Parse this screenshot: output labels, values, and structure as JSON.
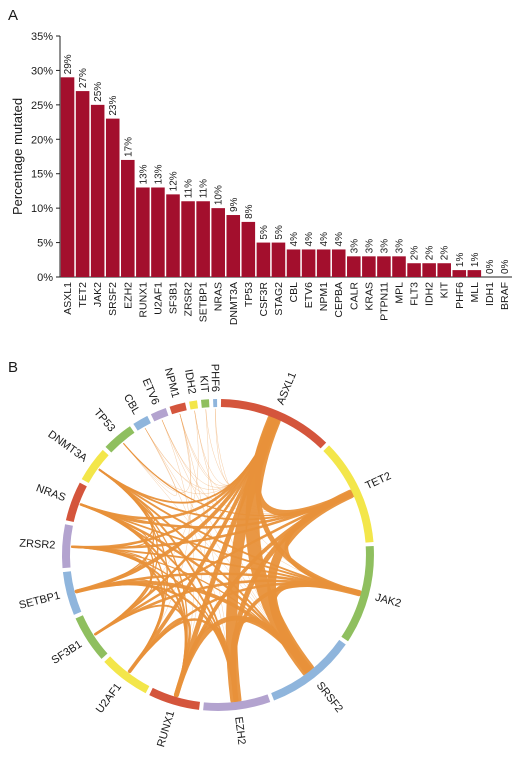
{
  "panels": {
    "a_label": "A",
    "b_label": "B"
  },
  "colors": {
    "bar": "#a30f2d",
    "chord": "#e8913a",
    "ring_palette": [
      "#d4553c",
      "#f3e64a",
      "#8fbf5f",
      "#8fb5dc",
      "#b3a3cf"
    ]
  },
  "chart_data": [
    {
      "type": "bar",
      "ylabel": "Percentage mutated",
      "ylim": [
        0,
        35
      ],
      "yticks": [
        "0%",
        "5%",
        "10%",
        "15%",
        "20%",
        "25%",
        "30%",
        "35%"
      ],
      "categories": [
        "ASXL1",
        "TET2",
        "JAK2",
        "SRSF2",
        "EZH2",
        "RUNX1",
        "U2AF1",
        "SF3B1",
        "ZRSR2",
        "SETBP1",
        "NRAS",
        "DNMT3A",
        "TP53",
        "CSF3R",
        "STAG2",
        "CBL",
        "ETV6",
        "NPM1",
        "CEPBA",
        "CALR",
        "KRAS",
        "PTPN11",
        "MPL",
        "FLT3",
        "IDH2",
        "KIT",
        "PHF6",
        "MLL",
        "IDH1",
        "BRAF"
      ],
      "values": [
        29,
        27,
        25,
        23,
        17,
        13,
        13,
        12,
        11,
        11,
        10,
        9,
        8,
        5,
        5,
        4,
        4,
        4,
        4,
        3,
        3,
        3,
        3,
        2,
        2,
        2,
        1,
        1,
        0,
        0
      ],
      "data_labels": [
        "29%",
        "27%",
        "25%",
        "23%",
        "17%",
        "13%",
        "13%",
        "12%",
        "11%",
        "11%",
        "10%",
        "9%",
        "8%",
        "5%",
        "5%",
        "4%",
        "4%",
        "4%",
        "4%",
        "3%",
        "3%",
        "3%",
        "3%",
        "2%",
        "2%",
        "2%",
        "1%",
        "1%",
        "0%",
        "0%"
      ]
    },
    {
      "type": "chord",
      "nodes": [
        "ASXL1",
        "TET2",
        "JAK2",
        "SRSF2",
        "EZH2",
        "RUNX1",
        "U2AF1",
        "SF3B1",
        "SETBP1",
        "ZRSR2",
        "NRAS",
        "DNMT3A",
        "TP53",
        "CBL",
        "ETV6",
        "NPM1",
        "IDH2",
        "KIT",
        "PHF6"
      ],
      "node_weights": [
        29,
        27,
        25,
        23,
        17,
        13,
        13,
        12,
        11,
        11,
        10,
        9,
        8,
        4,
        4,
        4,
        2,
        2,
        1
      ],
      "links": [
        {
          "source": "ASXL1",
          "target": "SRSF2",
          "value": 11
        },
        {
          "source": "ASXL1",
          "target": "EZH2",
          "value": 9
        },
        {
          "source": "ASXL1",
          "target": "TET2",
          "value": 5
        },
        {
          "source": "ASXL1",
          "target": "RUNX1",
          "value": 4
        },
        {
          "source": "ASXL1",
          "target": "JAK2",
          "value": 4
        },
        {
          "source": "ASXL1",
          "target": "U2AF1",
          "value": 3
        },
        {
          "source": "ASXL1",
          "target": "SETBP1",
          "value": 3
        },
        {
          "source": "ASXL1",
          "target": "SF3B1",
          "value": 2
        },
        {
          "source": "ASXL1",
          "target": "NRAS",
          "value": 2
        },
        {
          "source": "ASXL1",
          "target": "ZRSR2",
          "value": 2
        },
        {
          "source": "ASXL1",
          "target": "DNMT3A",
          "value": 1.5
        },
        {
          "source": "TET2",
          "target": "SRSF2",
          "value": 7
        },
        {
          "source": "TET2",
          "target": "EZH2",
          "value": 4
        },
        {
          "source": "TET2",
          "target": "JAK2",
          "value": 3
        },
        {
          "source": "TET2",
          "target": "RUNX1",
          "value": 3
        },
        {
          "source": "TET2",
          "target": "ZRSR2",
          "value": 2
        },
        {
          "source": "TET2",
          "target": "SF3B1",
          "value": 2
        },
        {
          "source": "TET2",
          "target": "NRAS",
          "value": 2
        },
        {
          "source": "TET2",
          "target": "DNMT3A",
          "value": 1.5
        },
        {
          "source": "TET2",
          "target": "TP53",
          "value": 1
        },
        {
          "source": "JAK2",
          "target": "SRSF2",
          "value": 5
        },
        {
          "source": "JAK2",
          "target": "EZH2",
          "value": 3
        },
        {
          "source": "JAK2",
          "target": "U2AF1",
          "value": 2
        },
        {
          "source": "JAK2",
          "target": "SF3B1",
          "value": 2
        },
        {
          "source": "JAK2",
          "target": "SETBP1",
          "value": 2
        },
        {
          "source": "JAK2",
          "target": "ZRSR2",
          "value": 1.5
        },
        {
          "source": "JAK2",
          "target": "NRAS",
          "value": 1.5
        },
        {
          "source": "JAK2",
          "target": "DNMT3A",
          "value": 1.5
        },
        {
          "source": "SRSF2",
          "target": "EZH2",
          "value": 4
        },
        {
          "source": "SRSF2",
          "target": "RUNX1",
          "value": 4
        },
        {
          "source": "SRSF2",
          "target": "SETBP1",
          "value": 3
        },
        {
          "source": "SRSF2",
          "target": "NRAS",
          "value": 2
        },
        {
          "source": "SRSF2",
          "target": "DNMT3A",
          "value": 1.5
        },
        {
          "source": "SRSF2",
          "target": "ZRSR2",
          "value": 1
        },
        {
          "source": "EZH2",
          "target": "RUNX1",
          "value": 3
        },
        {
          "source": "EZH2",
          "target": "U2AF1",
          "value": 2
        },
        {
          "source": "EZH2",
          "target": "SETBP1",
          "value": 2
        },
        {
          "source": "EZH2",
          "target": "NRAS",
          "value": 1.5
        },
        {
          "source": "EZH2",
          "target": "DNMT3A",
          "value": 1.5
        },
        {
          "source": "EZH2",
          "target": "ZRSR2",
          "value": 1
        },
        {
          "source": "RUNX1",
          "target": "U2AF1",
          "value": 2
        },
        {
          "source": "RUNX1",
          "target": "SF3B1",
          "value": 1.5
        },
        {
          "source": "RUNX1",
          "target": "SETBP1",
          "value": 1.5
        },
        {
          "source": "RUNX1",
          "target": "NRAS",
          "value": 1.5
        },
        {
          "source": "RUNX1",
          "target": "ZRSR2",
          "value": 1.5
        },
        {
          "source": "RUNX1",
          "target": "DNMT3A",
          "value": 1
        },
        {
          "source": "U2AF1",
          "target": "SETBP1",
          "value": 1.5
        },
        {
          "source": "U2AF1",
          "target": "ZRSR2",
          "value": 1.5
        },
        {
          "source": "U2AF1",
          "target": "NRAS",
          "value": 1
        },
        {
          "source": "U2AF1",
          "target": "DNMT3A",
          "value": 1
        },
        {
          "source": "SF3B1",
          "target": "ZRSR2",
          "value": 1.5
        },
        {
          "source": "SF3B1",
          "target": "SETBP1",
          "value": 1
        },
        {
          "source": "SF3B1",
          "target": "NRAS",
          "value": 1
        },
        {
          "source": "SF3B1",
          "target": "DNMT3A",
          "value": 1
        },
        {
          "source": "SETBP1",
          "target": "ZRSR2",
          "value": 1
        },
        {
          "source": "SETBP1",
          "target": "NRAS",
          "value": 1
        },
        {
          "source": "SETBP1",
          "target": "DNMT3A",
          "value": 1
        },
        {
          "source": "ZRSR2",
          "target": "NRAS",
          "value": 1
        },
        {
          "source": "ZRSR2",
          "target": "DNMT3A",
          "value": 1
        },
        {
          "source": "NRAS",
          "target": "DNMT3A",
          "value": 1
        },
        {
          "source": "TP53",
          "target": "CBL",
          "value": 0.3
        },
        {
          "source": "TP53",
          "target": "NPM1",
          "value": 0.3
        },
        {
          "source": "TP53",
          "target": "SRSF2",
          "value": 0.4
        },
        {
          "source": "TP53",
          "target": "ASXL1",
          "value": 0.4
        },
        {
          "source": "CBL",
          "target": "ASXL1",
          "value": 0.4
        },
        {
          "source": "CBL",
          "target": "TET2",
          "value": 0.3
        },
        {
          "source": "CBL",
          "target": "SRSF2",
          "value": 0.3
        },
        {
          "source": "CBL",
          "target": "EZH2",
          "value": 0.3
        },
        {
          "source": "ETV6",
          "target": "ASXL1",
          "value": 0.3
        },
        {
          "source": "ETV6",
          "target": "JAK2",
          "value": 0.3
        },
        {
          "source": "ETV6",
          "target": "RUNX1",
          "value": 0.3
        },
        {
          "source": "ETV6",
          "target": "SRSF2",
          "value": 0.3
        },
        {
          "source": "NPM1",
          "target": "ASXL1",
          "value": 0.3
        },
        {
          "source": "NPM1",
          "target": "TET2",
          "value": 0.3
        },
        {
          "source": "NPM1",
          "target": "U2AF1",
          "value": 0.3
        },
        {
          "source": "NPM1",
          "target": "EZH2",
          "value": 0.3
        },
        {
          "source": "IDH2",
          "target": "ASXL1",
          "value": 0.3
        },
        {
          "source": "IDH2",
          "target": "SRSF2",
          "value": 0.3
        },
        {
          "source": "IDH2",
          "target": "SF3B1",
          "value": 0.3
        },
        {
          "source": "KIT",
          "target": "TET2",
          "value": 0.3
        },
        {
          "source": "KIT",
          "target": "RUNX1",
          "value": 0.3
        },
        {
          "source": "PHF6",
          "target": "ASXL1",
          "value": 0.3
        },
        {
          "source": "PHF6",
          "target": "JAK2",
          "value": 0.3
        }
      ]
    }
  ]
}
